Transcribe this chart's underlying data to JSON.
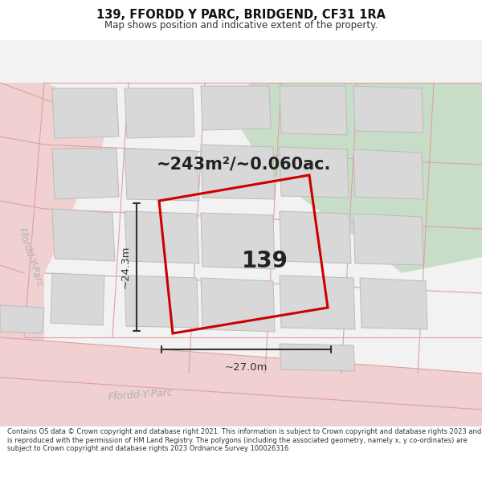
{
  "title": "139, FFORDD Y PARC, BRIDGEND, CF31 1RA",
  "subtitle": "Map shows position and indicative extent of the property.",
  "footer": "Contains OS data © Crown copyright and database right 2021. This information is subject to Crown copyright and database rights 2023 and is reproduced with the permission of HM Land Registry. The polygons (including the associated geometry, namely x, y co-ordinates) are subject to Crown copyright and database rights 2023 Ordnance Survey 100026316.",
  "area_label": "~243m²/~0.060ac.",
  "plot_number": "139",
  "dim_width": "~27.0m",
  "dim_height": "~24.3m",
  "map_bg": "#f2f2f2",
  "road_color": "#f0d0d0",
  "road_line_color": "#e0a0a0",
  "building_color": "#d8d8d8",
  "building_edge": "#bbbbbb",
  "green_area": "#c8ddc8",
  "plot_outline_color": "#cc0000",
  "road_label_color": "#b0b0b0",
  "road_label1": "Ffordd-Y-Parc",
  "road_label2": "Ffordd-Y-Parc",
  "dim_color": "#333333",
  "text_color": "#222222"
}
